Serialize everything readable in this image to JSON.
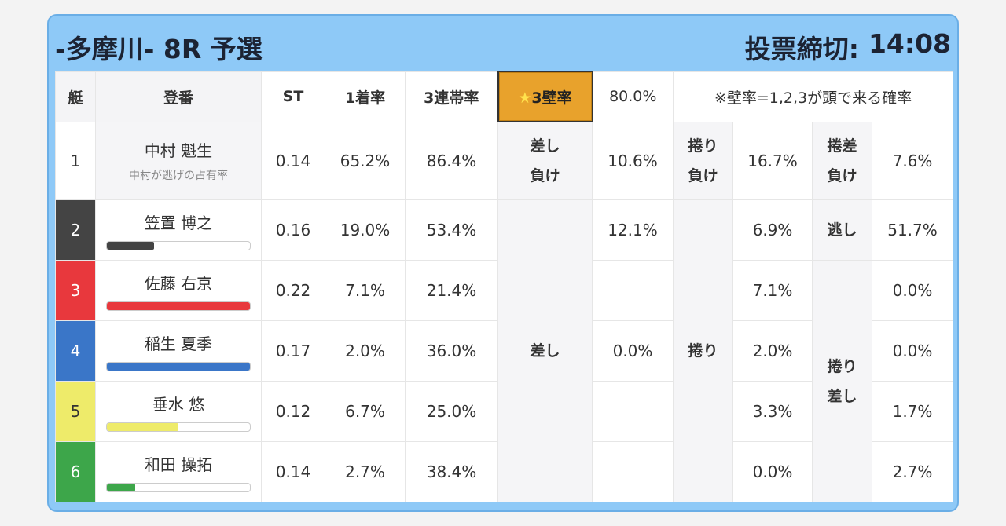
{
  "header": {
    "title": "-多摩川- 8R 予選",
    "deadline_label": "投票締切:",
    "deadline_time": "14:08"
  },
  "columns": {
    "lane": "艇",
    "name": "登番",
    "st": "ST",
    "first_rate": "1着率",
    "trifecta_rate": "3連帯率",
    "wall_star": "★",
    "wall_label": "3壁率",
    "wall_value": "80.0%",
    "wall_note": "※壁率=1,2,3が頭で来る確率"
  },
  "racers": [
    {
      "lane": "1",
      "name": "中村 魁生",
      "sub": "中村が逃げの占有率",
      "st": "0.14",
      "first": "65.2%",
      "trifecta": "86.4%",
      "bar_fraction": null,
      "bar_color": null
    },
    {
      "lane": "2",
      "name": "笠置 博之",
      "st": "0.16",
      "first": "19.0%",
      "trifecta": "53.4%",
      "bar_fraction": 0.33,
      "bar_color": "#444444"
    },
    {
      "lane": "3",
      "name": "佐藤 右京",
      "st": "0.22",
      "first": "7.1%",
      "trifecta": "21.4%",
      "bar_fraction": 1.0,
      "bar_color": "#e8383d"
    },
    {
      "lane": "4",
      "name": "稲生 夏季",
      "st": "0.17",
      "first": "2.0%",
      "trifecta": "36.0%",
      "bar_fraction": 1.0,
      "bar_color": "#3a76c8"
    },
    {
      "lane": "5",
      "name": "垂水 悠",
      "st": "0.12",
      "first": "6.7%",
      "trifecta": "25.0%",
      "bar_fraction": 0.5,
      "bar_color": "#eeeb6a"
    },
    {
      "lane": "6",
      "name": "和田 操拓",
      "st": "0.14",
      "first": "2.7%",
      "trifecta": "38.4%",
      "bar_fraction": 0.2,
      "bar_color": "#3da64a"
    }
  ],
  "outcomes": {
    "sashi_make_line1": "差し",
    "sashi_make_line2": "負け",
    "sashi_make": "10.6%",
    "makuri_make_line1": "捲り",
    "makuri_make_line2": "負け",
    "makuri_make": "16.7%",
    "makurisashi_make_line1": "捲差",
    "makurisashi_make_line2": "負け",
    "makurisashi_make": "7.6%",
    "sashi_label": "差し",
    "sashi_lane2": "12.1%",
    "sashi_lane4": "0.0%",
    "makuri_label": "捲り",
    "makuri_values": [
      "6.9%",
      "7.1%",
      "2.0%",
      "3.3%",
      "0.0%"
    ],
    "nige_label": "逃し",
    "nige_value": "51.7%",
    "makurisashi_line1": "捲り",
    "makurisashi_line2": "差し",
    "makurisashi_values": [
      "0.0%",
      "0.0%",
      "1.7%",
      "2.7%"
    ]
  }
}
